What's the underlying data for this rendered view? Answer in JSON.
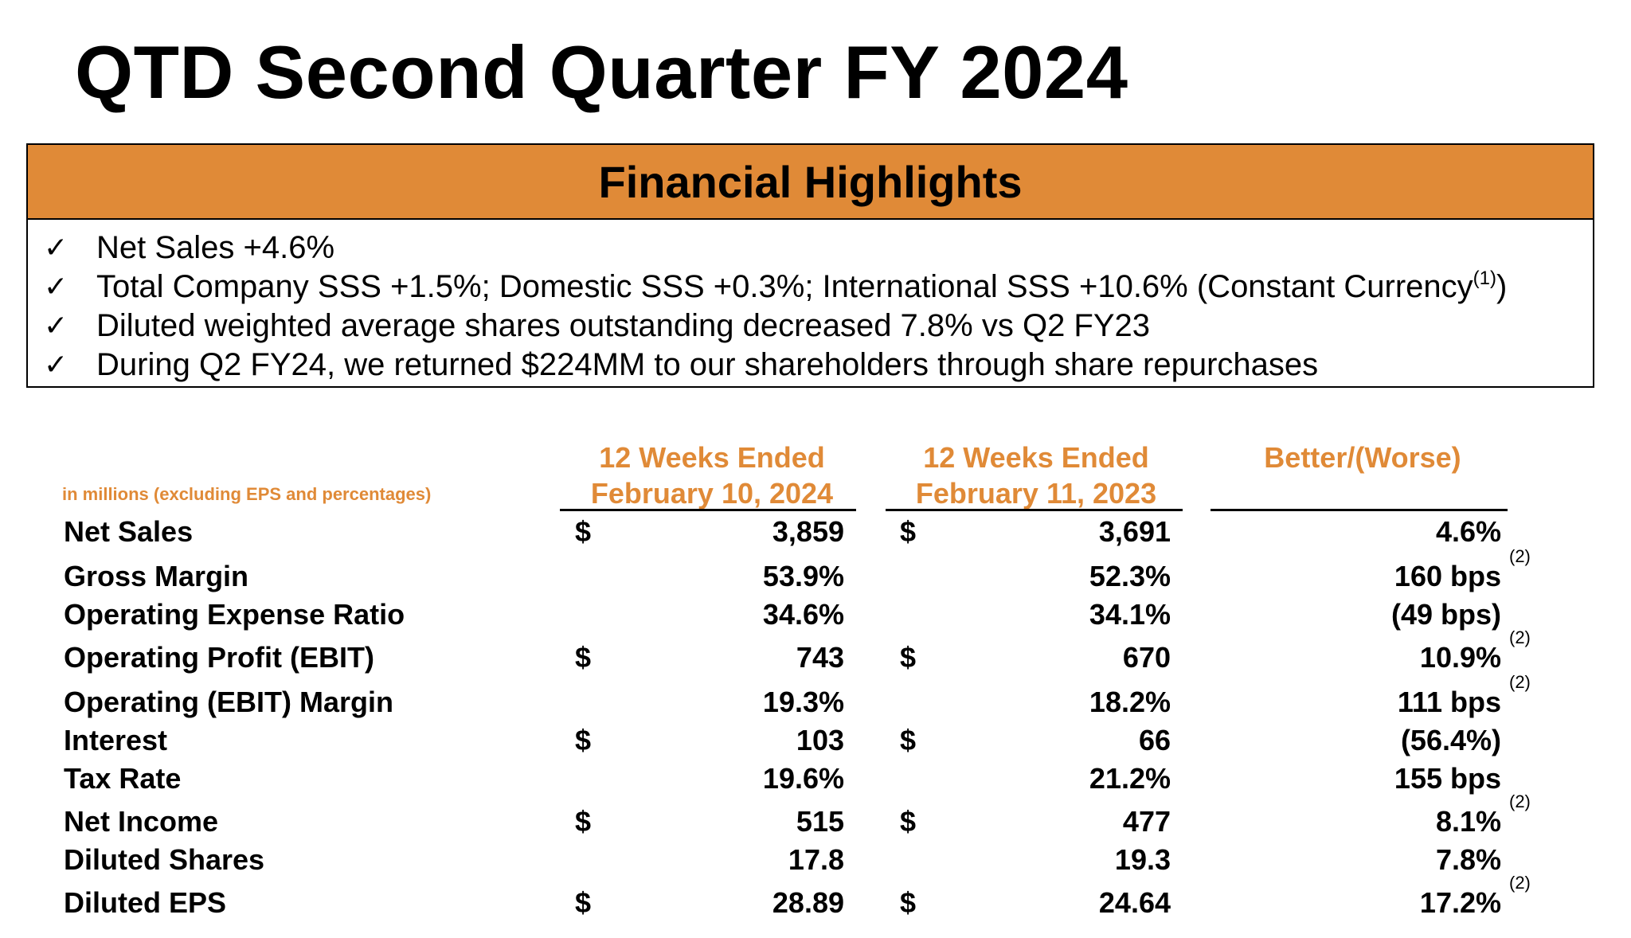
{
  "title": "QTD Second Quarter FY 2024",
  "highlights": {
    "heading": "Financial Highlights",
    "check_glyph": "✓",
    "items": [
      {
        "text": "Net Sales +4.6%"
      },
      {
        "text": "Total Company SSS +1.5%; Domestic SSS +0.3%; International SSS +10.6% (Constant Currency",
        "sup": "(1)",
        "after": ")"
      },
      {
        "text": "Diluted weighted average shares outstanding decreased 7.8% vs Q2 FY23"
      },
      {
        "text": "During Q2 FY24, we returned $224MM to our shareholders through share repurchases"
      }
    ]
  },
  "table": {
    "units_note": "in millions (excluding EPS and percentages)",
    "columns": [
      {
        "line1": "12 Weeks Ended",
        "line2": "February 10, 2024"
      },
      {
        "line1": "12 Weeks Ended",
        "line2": "February 11, 2023"
      },
      {
        "line1": "",
        "line2": "Better/(Worse)"
      }
    ],
    "rows": [
      {
        "label": "Net Sales",
        "cur1": "$",
        "v1": "3,859",
        "cur2": "$",
        "v2": "3,691",
        "v3": "4.6%",
        "note": ""
      },
      {
        "label": "Gross Margin",
        "cur1": "",
        "v1": "53.9%",
        "cur2": "",
        "v2": "52.3%",
        "v3": "160 bps",
        "note": "(2)"
      },
      {
        "label": "Operating Expense Ratio",
        "cur1": "",
        "v1": "34.6%",
        "cur2": "",
        "v2": "34.1%",
        "v3": "(49 bps)",
        "note": ""
      },
      {
        "label": "Operating Profit (EBIT)",
        "cur1": "$",
        "v1": "743",
        "cur2": "$",
        "v2": "670",
        "v3": "10.9%",
        "note": "(2)"
      },
      {
        "label": "Operating (EBIT) Margin",
        "cur1": "",
        "v1": "19.3%",
        "cur2": "",
        "v2": "18.2%",
        "v3": "111 bps",
        "note": "(2)"
      },
      {
        "label": "Interest",
        "cur1": "$",
        "v1": "103",
        "cur2": "$",
        "v2": "66",
        "v3": "(56.4%)",
        "note": ""
      },
      {
        "label": "Tax Rate",
        "cur1": "",
        "v1": "19.6%",
        "cur2": "",
        "v2": "21.2%",
        "v3": "155 bps",
        "note": ""
      },
      {
        "label": "Net Income",
        "cur1": "$",
        "v1": "515",
        "cur2": "$",
        "v2": "477",
        "v3": "8.1%",
        "note": "(2)"
      },
      {
        "label": "Diluted Shares",
        "cur1": "",
        "v1": "17.8",
        "cur2": "",
        "v2": "19.3",
        "v3": "7.8%",
        "note": ""
      },
      {
        "label": "Diluted EPS",
        "cur1": "$",
        "v1": "28.89",
        "cur2": "$",
        "v2": "24.64",
        "v3": "17.2%",
        "note": "(2)"
      }
    ]
  },
  "colors": {
    "accent": "#E08A37",
    "text": "#000000"
  }
}
